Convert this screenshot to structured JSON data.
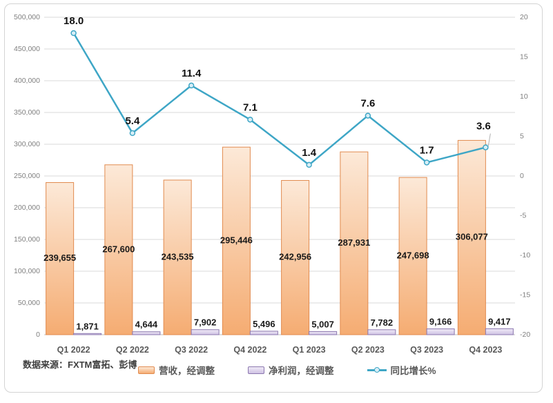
{
  "source_note": "数据来源：FXTM富拓、彭博",
  "legend": {
    "items": [
      {
        "label": "营收，经调整",
        "swatch": "orange-bar"
      },
      {
        "label": "净利润，经调整",
        "swatch": "purple-bar"
      },
      {
        "label": "同比增长%",
        "swatch": "teal-line-marker"
      }
    ],
    "position": "bottom"
  },
  "colors": {
    "bar_fill_top": "#FCE9D8",
    "bar_fill_bottom": "#F5AC72",
    "bar_border": "#E18A4E",
    "net_fill_top": "#EFEAF6",
    "net_fill_bottom": "#CFC2E4",
    "net_border": "#8B77AF",
    "line": "#3EA6C6",
    "marker_fill": "#D8EEF6",
    "gridline": "#D9D9D9",
    "axis_line": "#BDBDBD",
    "tick_text": "#7F7F7F",
    "category_text": "#595959",
    "data_label_text": "#1A1A1A",
    "leader_line": "#AFAFAF"
  },
  "chart_data": {
    "type": "bar",
    "subtype": "combo-bar-line-dual-axis",
    "categories": [
      "Q1 2022",
      "Q2 2022",
      "Q3 2022",
      "Q4 2022",
      "Q1 2023",
      "Q2 2023",
      "Q3 2023",
      "Q4 2023"
    ],
    "series": [
      {
        "name": "营收，经调整",
        "type": "bar",
        "axis": "left",
        "values": [
          239655,
          267600,
          243535,
          295446,
          242956,
          287931,
          247698,
          306077
        ],
        "labels": [
          "239,655",
          "267,600",
          "243,535",
          "295,446",
          "242,956",
          "287,931",
          "247,698",
          "306,077"
        ]
      },
      {
        "name": "净利润，经调整",
        "type": "bar",
        "axis": "left",
        "values": [
          1871,
          4644,
          7902,
          5496,
          5007,
          7782,
          9166,
          9417
        ],
        "labels": [
          "1,871",
          "4,644",
          "7,902",
          "5,496",
          "5,007",
          "7,782",
          "9,166",
          "9,417"
        ]
      },
      {
        "name": "同比增长%",
        "type": "line",
        "axis": "right",
        "values": [
          18.0,
          5.4,
          11.4,
          7.1,
          1.4,
          7.6,
          1.7,
          3.6
        ],
        "labels": [
          "18.0",
          "5.4",
          "11.4",
          "7.1",
          "1.4",
          "7.6",
          "1.7",
          "3.6"
        ]
      }
    ],
    "left_axis": {
      "min": 0,
      "max": 500000,
      "step": 50000,
      "tick_labels": [
        "0",
        "50,000",
        "100,000",
        "150,000",
        "200,000",
        "250,000",
        "300,000",
        "350,000",
        "400,000",
        "450,000",
        "500,000"
      ]
    },
    "right_axis": {
      "min": -20,
      "max": 20,
      "step": 5,
      "tick_labels": [
        "-20",
        "-15",
        "-10",
        "-5",
        "0",
        "5",
        "10",
        "15",
        "20"
      ]
    },
    "grid": "horizontal",
    "legend_position": "bottom",
    "title": ""
  }
}
